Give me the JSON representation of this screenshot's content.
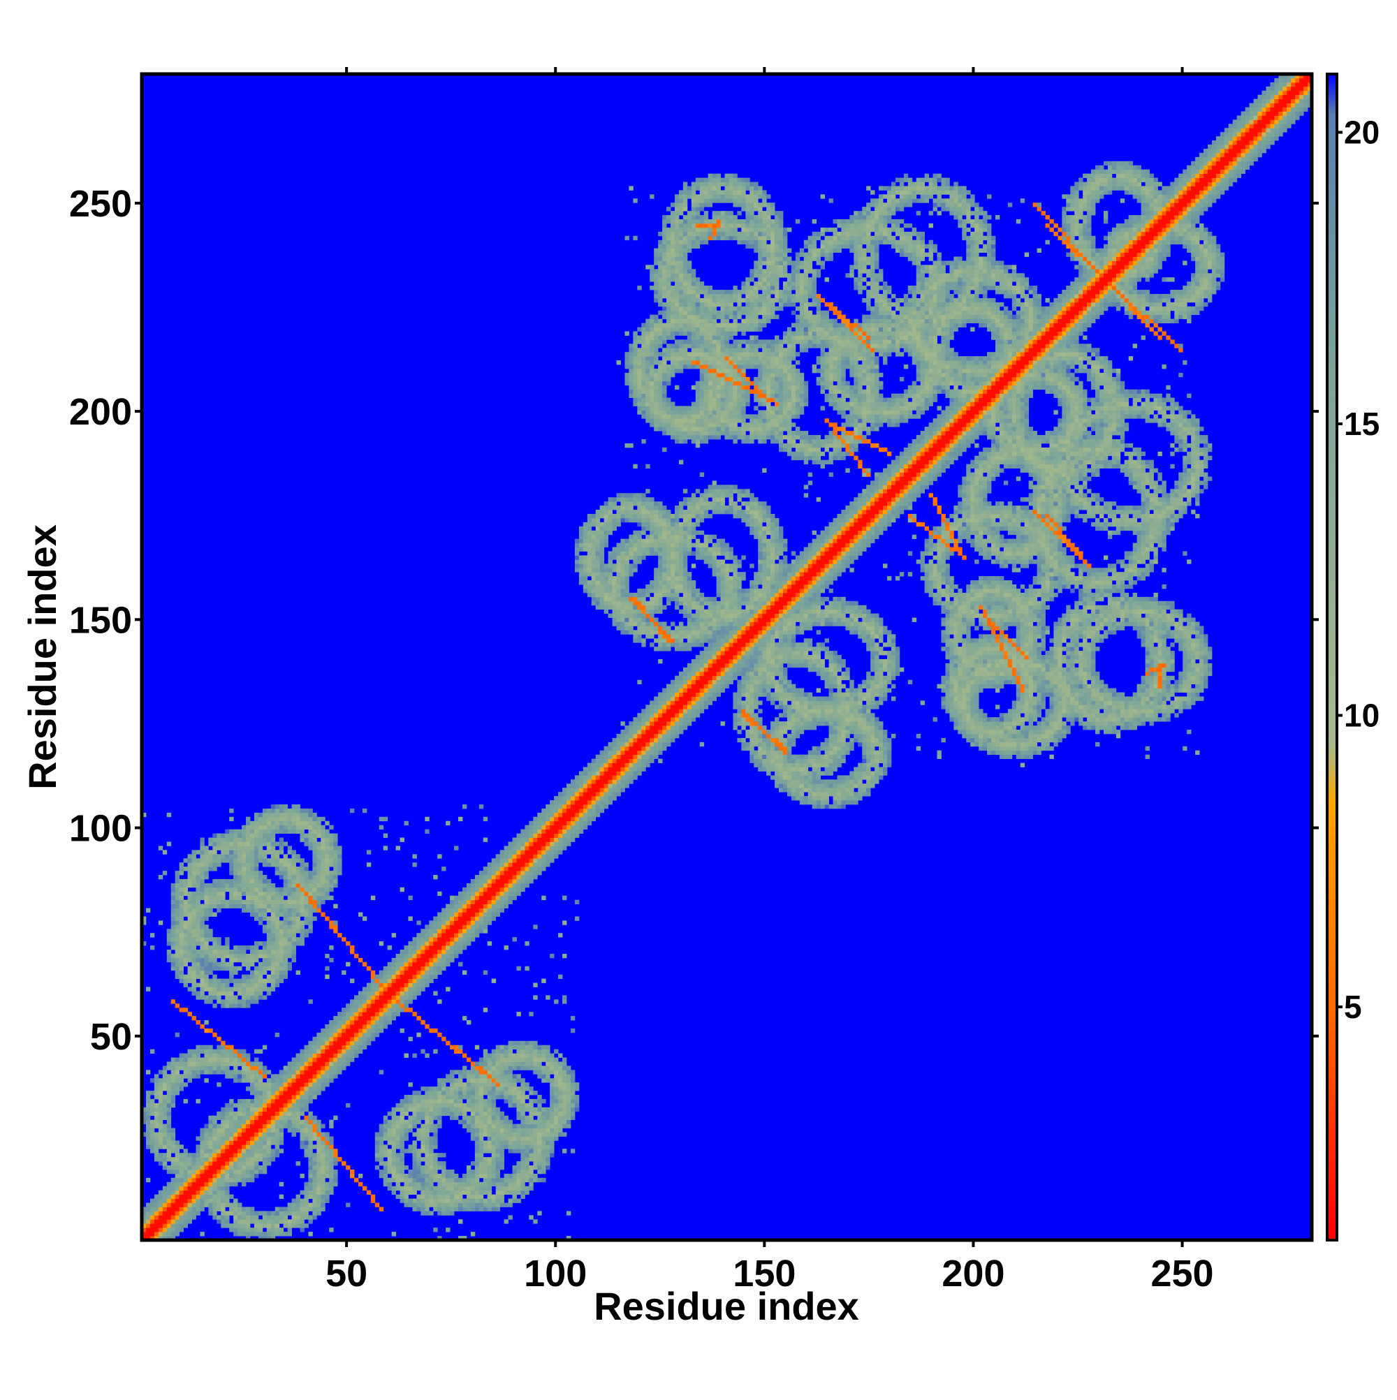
{
  "chart_data": {
    "type": "heatmap",
    "title": "",
    "xlabel": "Residue index",
    "ylabel": "Residue index",
    "n_residues": 281,
    "xlim": [
      1,
      281
    ],
    "ylim": [
      1,
      281
    ],
    "x_ticks": [
      50,
      100,
      150,
      200,
      250
    ],
    "y_ticks": [
      50,
      100,
      150,
      200,
      250
    ],
    "colorbar": {
      "range": [
        1,
        21
      ],
      "ticks": [
        5,
        10,
        15,
        20
      ],
      "colors": [
        {
          "value": 1,
          "color": "#ff0000"
        },
        {
          "value": 5,
          "color": "#ff6a00"
        },
        {
          "value": 8.5,
          "color": "#ffa500"
        },
        {
          "value": 9.5,
          "color": "#a5b98a"
        },
        {
          "value": 16,
          "color": "#7aa49a"
        },
        {
          "value": 20.3,
          "color": "#5a7fb0"
        },
        {
          "value": 21,
          "color": "#0000ff"
        }
      ]
    },
    "background": "#0000ff",
    "value_description": "pairwise residue distance, symmetric about diagonal",
    "diagonal": {
      "start": 1,
      "end": 281
    },
    "helix_bands": [
      {
        "x_range": [
          1,
          105
        ],
        "y_range": [
          1,
          105
        ],
        "strength": 0.55
      },
      {
        "x_range": [
          115,
          255
        ],
        "y_range": [
          115,
          255
        ],
        "strength": 0.6
      }
    ],
    "contact_strips": [
      {
        "x": [
          38,
          58
        ],
        "y": [
          86,
          62
        ],
        "width": 3
      },
      {
        "x": [
          62,
          84
        ],
        "y": [
          58,
          40
        ],
        "width": 3
      },
      {
        "x": [
          8,
          30
        ],
        "y": [
          58,
          40
        ],
        "width": 2
      },
      {
        "x": [
          118,
          128
        ],
        "y": [
          155,
          145
        ],
        "width": 2
      },
      {
        "x": [
          133,
          153
        ],
        "y": [
          212,
          202
        ],
        "width": 2
      },
      {
        "x": [
          163,
          175
        ],
        "y": [
          228,
          218
        ],
        "width": 2
      },
      {
        "x": [
          165,
          180
        ],
        "y": [
          198,
          190
        ],
        "width": 2
      },
      {
        "x": [
          145,
          155
        ],
        "y": [
          127,
          119
        ],
        "width": 2
      },
      {
        "x": [
          185,
          198
        ],
        "y": [
          175,
          165
        ],
        "width": 2
      },
      {
        "x": [
          203,
          213
        ],
        "y": [
          151,
          141
        ],
        "width": 2
      },
      {
        "x": [
          215,
          225
        ],
        "y": [
          176,
          166
        ],
        "width": 2
      },
      {
        "x": [
          218,
          250
        ],
        "y": [
          245,
          215
        ],
        "width": 2
      },
      {
        "x": [
          134,
          138
        ],
        "y": [
          245,
          245
        ],
        "width": 2
      },
      {
        "x": [
          242,
          246
        ],
        "y": [
          137,
          139
        ],
        "width": 2
      }
    ],
    "rings": [
      {
        "cx": 18,
        "cy": 30,
        "rx": 14,
        "ry": 14
      },
      {
        "cx": 25,
        "cy": 82,
        "rx": 14,
        "ry": 14
      },
      {
        "cx": 72,
        "cy": 22,
        "rx": 12,
        "ry": 12
      },
      {
        "cx": 92,
        "cy": 35,
        "rx": 10,
        "ry": 10
      },
      {
        "cx": 128,
        "cy": 158,
        "rx": 14,
        "ry": 12
      },
      {
        "cx": 165,
        "cy": 140,
        "rx": 14,
        "ry": 12
      },
      {
        "cx": 133,
        "cy": 205,
        "rx": 10,
        "ry": 9
      },
      {
        "cx": 140,
        "cy": 233,
        "rx": 14,
        "ry": 12
      },
      {
        "cx": 175,
        "cy": 230,
        "rx": 16,
        "ry": 14
      },
      {
        "cx": 200,
        "cy": 222,
        "rx": 14,
        "ry": 12
      },
      {
        "cx": 245,
        "cy": 235,
        "rx": 12,
        "ry": 10
      },
      {
        "cx": 178,
        "cy": 210,
        "rx": 12,
        "ry": 10
      },
      {
        "cx": 238,
        "cy": 188,
        "rx": 16,
        "ry": 14
      },
      {
        "cx": 205,
        "cy": 163,
        "rx": 14,
        "ry": 12
      },
      {
        "cx": 240,
        "cy": 140,
        "rx": 14,
        "ry": 12
      },
      {
        "cx": 210,
        "cy": 130,
        "rx": 12,
        "ry": 10
      },
      {
        "cx": 165,
        "cy": 118,
        "rx": 12,
        "ry": 10
      },
      {
        "cx": 215,
        "cy": 200,
        "rx": 10,
        "ry": 9
      },
      {
        "cx": 147,
        "cy": 205,
        "rx": 10,
        "ry": 9
      }
    ]
  }
}
